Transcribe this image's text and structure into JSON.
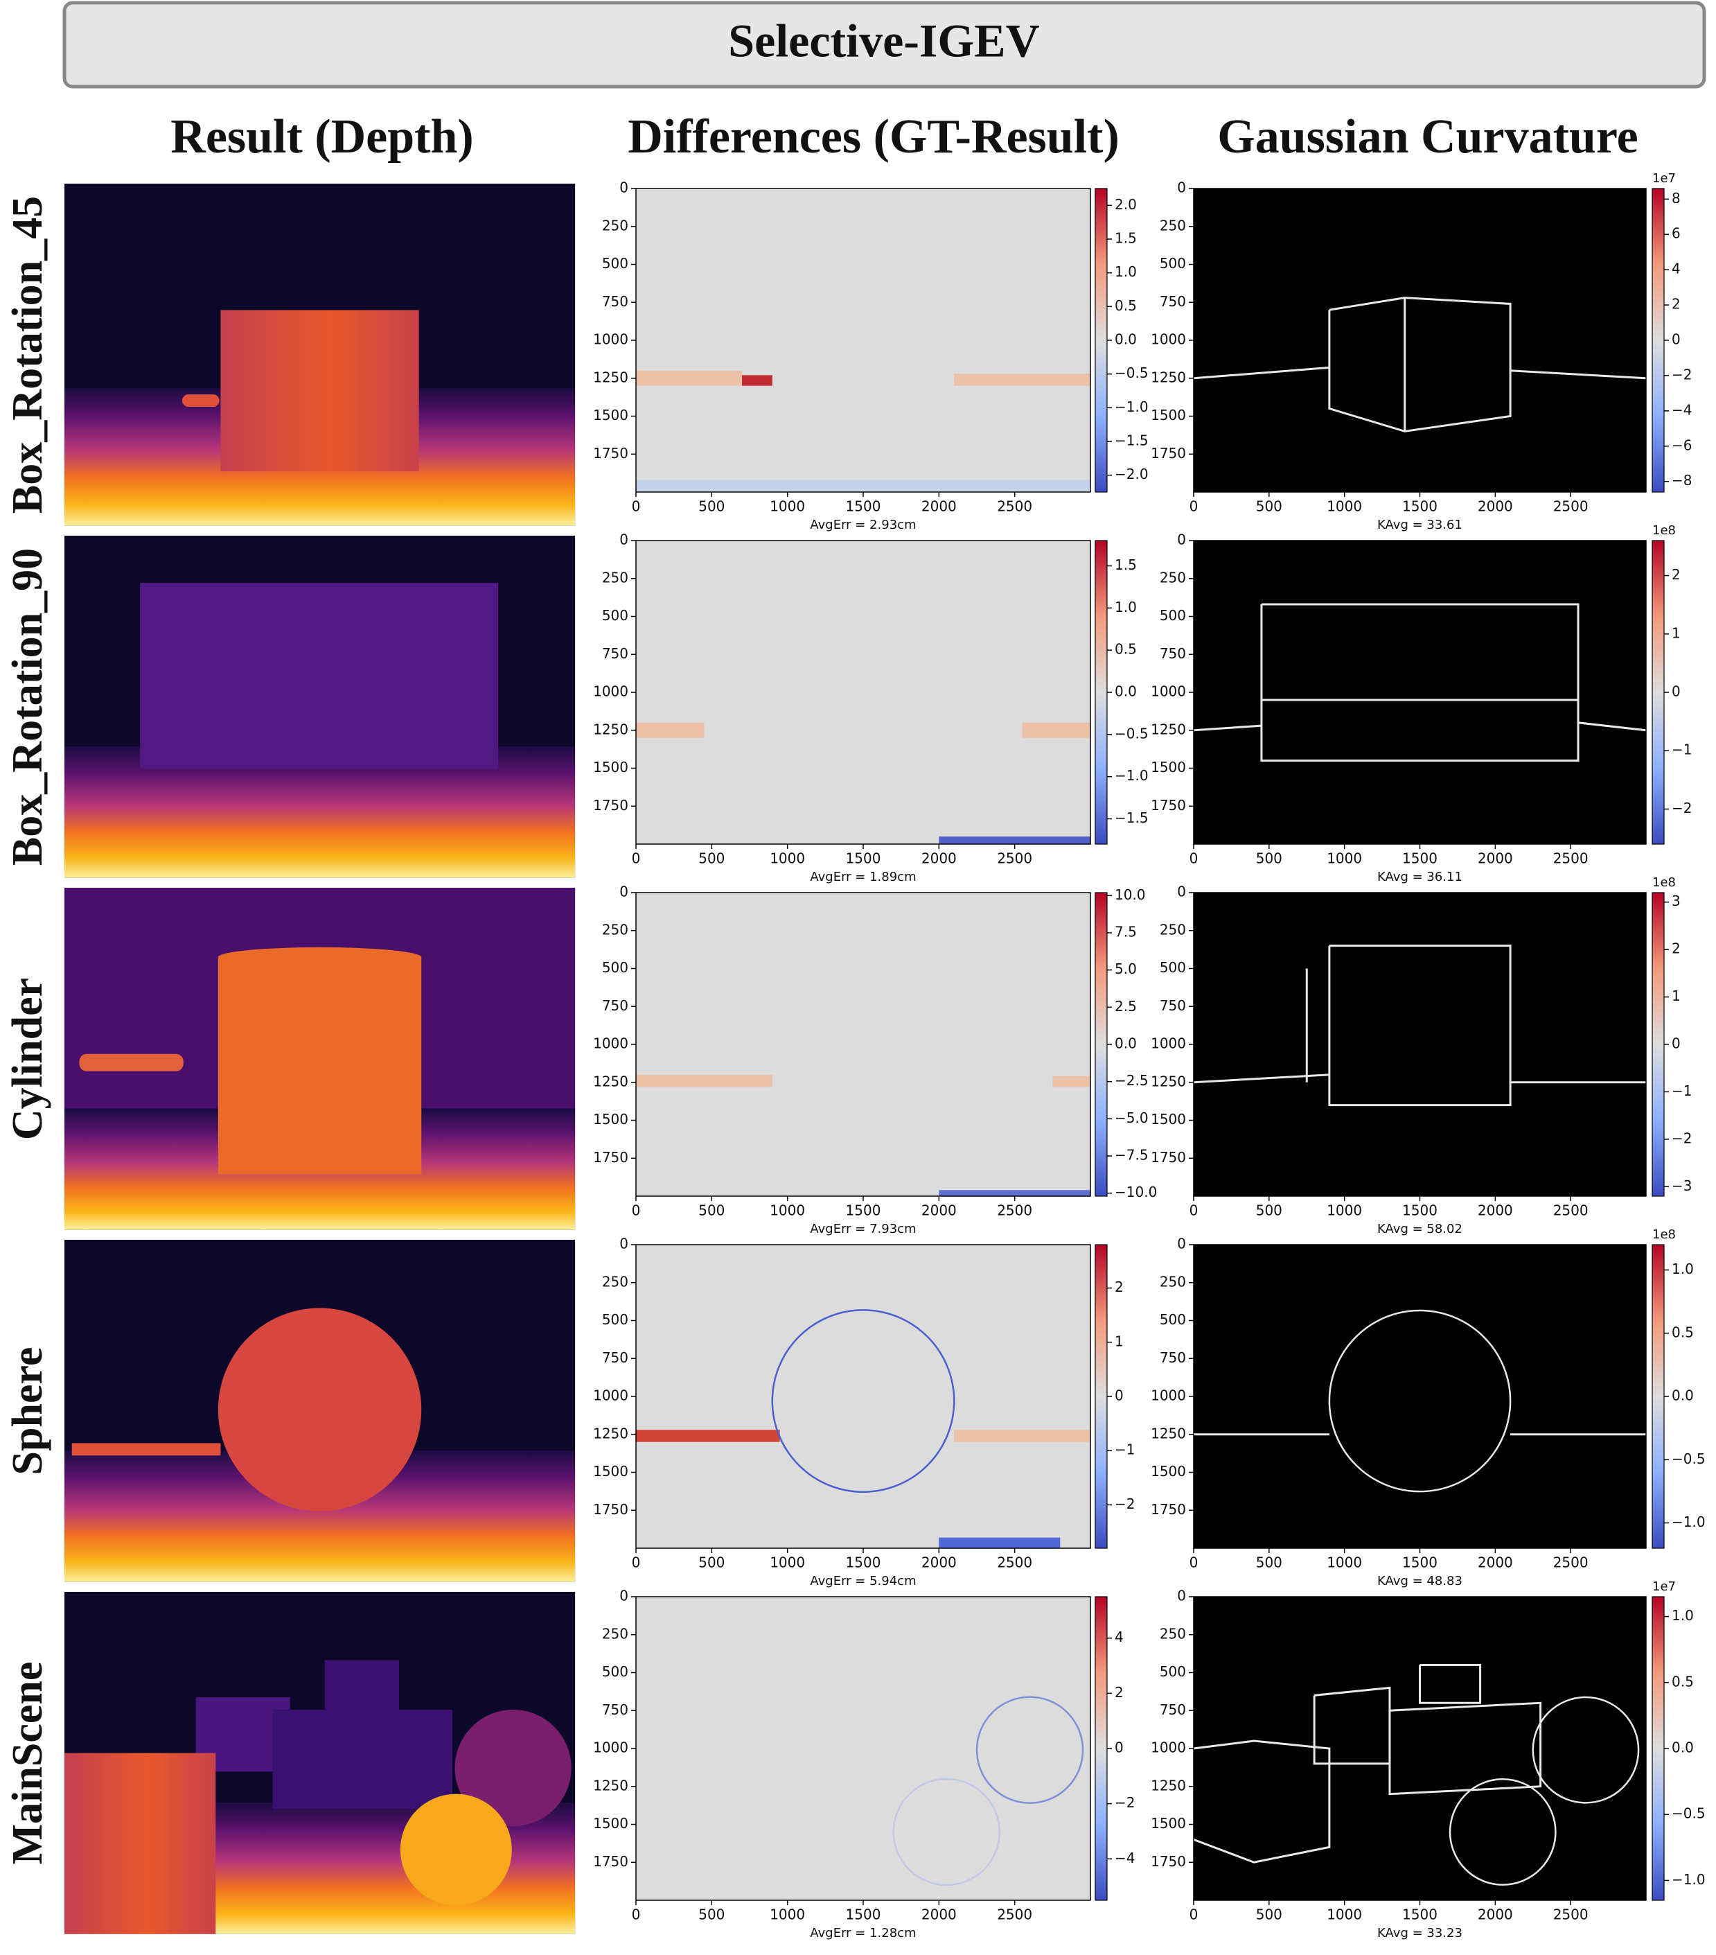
{
  "title": "Selective-IGEV",
  "column_headers": [
    "Result (Depth)",
    "Differences (GT-Result)",
    "Gaussian Curvature"
  ],
  "axes": {
    "xlim": [
      0,
      3000
    ],
    "ylim": [
      0,
      2000
    ],
    "y_inverted": true,
    "xticks": [
      0,
      500,
      1000,
      1500,
      2000,
      2500
    ],
    "yticks": [
      0,
      250,
      500,
      750,
      1000,
      1250,
      1500,
      1750
    ]
  },
  "rows": [
    {
      "label": "Box_Rotation_45",
      "diff": {
        "caption": "AvgErr = 2.93cm",
        "clim": [
          -2.25,
          2.25
        ],
        "cbar_ticks": [
          {
            "value": 2.0,
            "label": "2.0"
          },
          {
            "value": 1.5,
            "label": "1.5"
          },
          {
            "value": 1.0,
            "label": "1.0"
          },
          {
            "value": 0.5,
            "label": "0.5"
          },
          {
            "value": 0.0,
            "label": "0.0"
          },
          {
            "value": -0.5,
            "label": "−0.5"
          },
          {
            "value": -1.0,
            "label": "−1.0"
          },
          {
            "value": -1.5,
            "label": "−1.5"
          },
          {
            "value": -2.0,
            "label": "−2.0"
          }
        ]
      },
      "curvature": {
        "caption": "KAvg = 33.61",
        "exponent": "1e7",
        "clim": [
          -8.6,
          8.6
        ],
        "cbar_ticks": [
          {
            "value": 8,
            "label": "8"
          },
          {
            "value": 6,
            "label": "6"
          },
          {
            "value": 4,
            "label": "4"
          },
          {
            "value": 2,
            "label": "2"
          },
          {
            "value": 0,
            "label": "0"
          },
          {
            "value": -2,
            "label": "−2"
          },
          {
            "value": -4,
            "label": "−4"
          },
          {
            "value": -6,
            "label": "−6"
          },
          {
            "value": -8,
            "label": "−8"
          }
        ]
      }
    },
    {
      "label": "Box_Rotation_90",
      "diff": {
        "caption": "AvgErr = 1.89cm",
        "clim": [
          -1.8,
          1.8
        ],
        "cbar_ticks": [
          {
            "value": 1.5,
            "label": "1.5"
          },
          {
            "value": 1.0,
            "label": "1.0"
          },
          {
            "value": 0.5,
            "label": "0.5"
          },
          {
            "value": 0.0,
            "label": "0.0"
          },
          {
            "value": -0.5,
            "label": "−0.5"
          },
          {
            "value": -1.0,
            "label": "−1.0"
          },
          {
            "value": -1.5,
            "label": "−1.5"
          }
        ]
      },
      "curvature": {
        "caption": "KAvg = 36.11",
        "exponent": "1e8",
        "clim": [
          -2.6,
          2.6
        ],
        "cbar_ticks": [
          {
            "value": 2,
            "label": "2"
          },
          {
            "value": 1,
            "label": "1"
          },
          {
            "value": 0,
            "label": "0"
          },
          {
            "value": -1,
            "label": "−1"
          },
          {
            "value": -2,
            "label": "−2"
          }
        ]
      }
    },
    {
      "label": "Cylinder",
      "diff": {
        "caption": "AvgErr = 7.93cm",
        "clim": [
          -10.2,
          10.2
        ],
        "cbar_ticks": [
          {
            "value": 10.0,
            "label": "10.0"
          },
          {
            "value": 7.5,
            "label": "7.5"
          },
          {
            "value": 5.0,
            "label": "5.0"
          },
          {
            "value": 2.5,
            "label": "2.5"
          },
          {
            "value": 0.0,
            "label": "0.0"
          },
          {
            "value": -2.5,
            "label": "−2.5"
          },
          {
            "value": -5.0,
            "label": "−5.0"
          },
          {
            "value": -7.5,
            "label": "−7.5"
          },
          {
            "value": -10.0,
            "label": "−10.0"
          }
        ]
      },
      "curvature": {
        "caption": "KAvg = 58.02",
        "exponent": "1e8",
        "clim": [
          -3.2,
          3.2
        ],
        "cbar_ticks": [
          {
            "value": 3,
            "label": "3"
          },
          {
            "value": 2,
            "label": "2"
          },
          {
            "value": 1,
            "label": "1"
          },
          {
            "value": 0,
            "label": "0"
          },
          {
            "value": -1,
            "label": "−1"
          },
          {
            "value": -2,
            "label": "−2"
          },
          {
            "value": -3,
            "label": "−3"
          }
        ]
      }
    },
    {
      "label": "Sphere",
      "diff": {
        "caption": "AvgErr = 5.94cm",
        "clim": [
          -2.8,
          2.8
        ],
        "cbar_ticks": [
          {
            "value": 2,
            "label": "2"
          },
          {
            "value": 1,
            "label": "1"
          },
          {
            "value": 0,
            "label": "0"
          },
          {
            "value": -1,
            "label": "−1"
          },
          {
            "value": -2,
            "label": "−2"
          }
        ]
      },
      "curvature": {
        "caption": "KAvg = 48.83",
        "exponent": "1e8",
        "clim": [
          -1.2,
          1.2
        ],
        "cbar_ticks": [
          {
            "value": 1.0,
            "label": "1.0"
          },
          {
            "value": 0.5,
            "label": "0.5"
          },
          {
            "value": 0.0,
            "label": "0.0"
          },
          {
            "value": -0.5,
            "label": "−0.5"
          },
          {
            "value": -1.0,
            "label": "−1.0"
          }
        ]
      }
    },
    {
      "label": "MainScene",
      "diff": {
        "caption": "AvgErr = 1.28cm",
        "clim": [
          -5.5,
          5.5
        ],
        "cbar_ticks": [
          {
            "value": 4,
            "label": "4"
          },
          {
            "value": 2,
            "label": "2"
          },
          {
            "value": 0,
            "label": "0"
          },
          {
            "value": -2,
            "label": "−2"
          },
          {
            "value": -4,
            "label": "−4"
          }
        ]
      },
      "curvature": {
        "caption": "KAvg = 33.23",
        "exponent": "1e7",
        "clim": [
          -1.15,
          1.15
        ],
        "cbar_ticks": [
          {
            "value": 1.0,
            "label": "1.0"
          },
          {
            "value": 0.5,
            "label": "0.5"
          },
          {
            "value": 0.0,
            "label": "0.0"
          },
          {
            "value": -0.5,
            "label": "−0.5"
          },
          {
            "value": -1.0,
            "label": "−1.0"
          }
        ]
      }
    }
  ]
}
